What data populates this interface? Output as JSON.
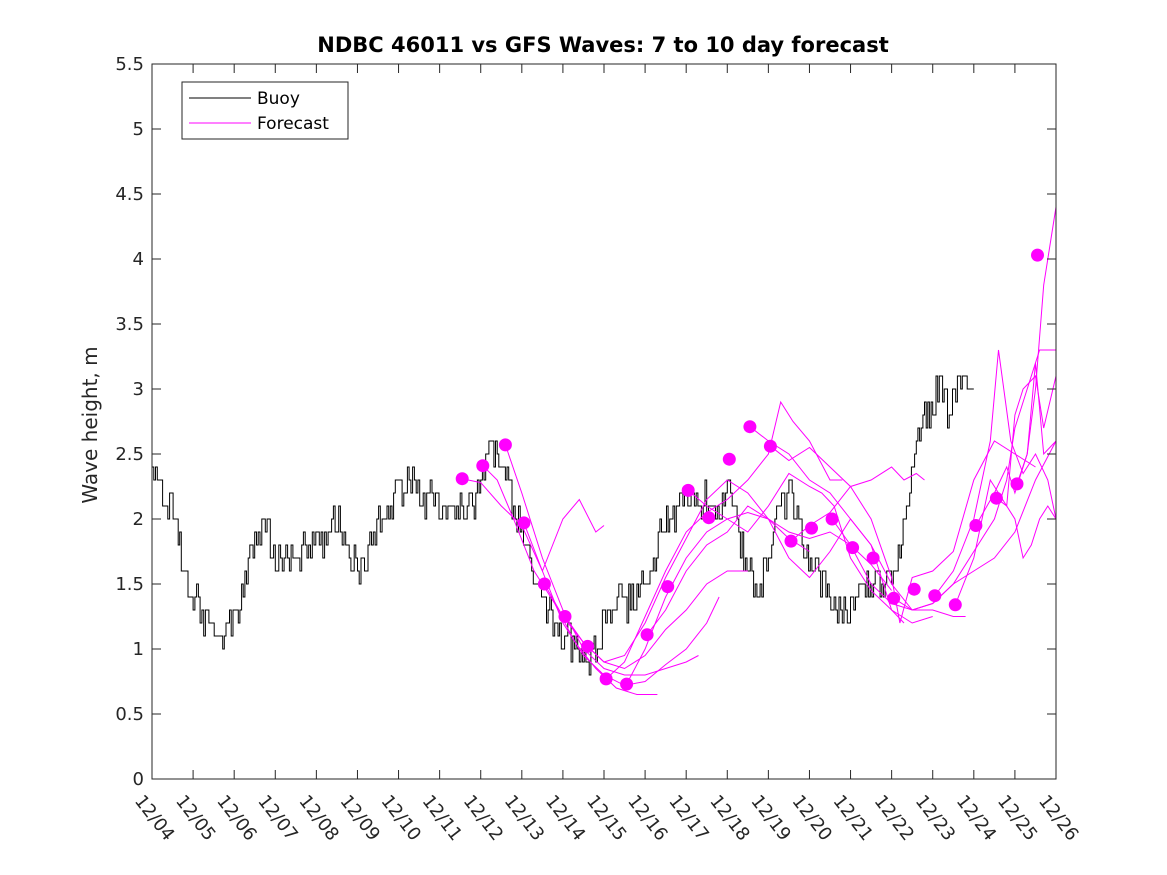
{
  "chart_data": {
    "type": "line",
    "title": "NDBC 46011 vs GFS Waves: 7 to 10 day forecast",
    "xlabel": "",
    "ylabel": "Wave height, m",
    "x_ticks": [
      "12/04",
      "12/05",
      "12/06",
      "12/07",
      "12/08",
      "12/09",
      "12/10",
      "12/11",
      "12/12",
      "12/13",
      "12/14",
      "12/15",
      "12/16",
      "12/17",
      "12/18",
      "12/19",
      "12/20",
      "12/21",
      "12/22",
      "12/23",
      "12/24",
      "12/25",
      "12/26"
    ],
    "xlim": [
      0,
      22
    ],
    "ylim": [
      0,
      5.5
    ],
    "y_ticks": [
      "0",
      "0.5",
      "1",
      "1.5",
      "2",
      "2.5",
      "3",
      "3.5",
      "4",
      "4.5",
      "5",
      "5.5"
    ],
    "legend": {
      "position": "top-left",
      "entries": [
        {
          "label": "Buoy",
          "color": "#000000"
        },
        {
          "label": "Forecast",
          "color": "#ff00ff"
        }
      ]
    },
    "colors": {
      "buoy": "#000000",
      "forecast": "#ff00ff"
    },
    "buoy_anchors": [
      [
        0,
        2.4
      ],
      [
        0.3,
        2.1
      ],
      [
        0.6,
        2.0
      ],
      [
        0.75,
        1.6
      ],
      [
        1.0,
        1.4
      ],
      [
        1.3,
        1.2
      ],
      [
        1.6,
        1.15
      ],
      [
        1.8,
        1.1
      ],
      [
        2.1,
        1.3
      ],
      [
        2.3,
        1.6
      ],
      [
        2.5,
        1.8
      ],
      [
        2.8,
        1.9
      ],
      [
        3.0,
        1.7
      ],
      [
        3.3,
        1.75
      ],
      [
        3.6,
        1.7
      ],
      [
        3.9,
        1.8
      ],
      [
        4.2,
        1.85
      ],
      [
        4.5,
        2.0
      ],
      [
        4.8,
        1.7
      ],
      [
        5.0,
        1.6
      ],
      [
        5.3,
        1.8
      ],
      [
        5.6,
        2.0
      ],
      [
        6.0,
        2.2
      ],
      [
        6.3,
        2.3
      ],
      [
        6.6,
        2.1
      ],
      [
        6.9,
        2.2
      ],
      [
        7.2,
        2.05
      ],
      [
        7.5,
        2.1
      ],
      [
        7.8,
        2.1
      ],
      [
        8.0,
        2.3
      ],
      [
        8.2,
        2.5
      ],
      [
        8.4,
        2.5
      ],
      [
        8.6,
        2.3
      ],
      [
        8.8,
        2.1
      ],
      [
        9.0,
        1.9
      ],
      [
        9.2,
        1.6
      ],
      [
        9.4,
        1.5
      ],
      [
        9.6,
        1.3
      ],
      [
        9.8,
        1.2
      ],
      [
        10.0,
        1.1
      ],
      [
        10.2,
        1.05
      ],
      [
        10.4,
        1.0
      ],
      [
        10.6,
        0.95
      ],
      [
        10.8,
        0.95
      ],
      [
        11.0,
        1.2
      ],
      [
        11.2,
        1.35
      ],
      [
        11.4,
        1.35
      ],
      [
        11.6,
        1.35
      ],
      [
        11.8,
        1.4
      ],
      [
        12.0,
        1.55
      ],
      [
        12.2,
        1.7
      ],
      [
        12.4,
        1.9
      ],
      [
        12.6,
        2.0
      ],
      [
        12.8,
        2.1
      ],
      [
        13.0,
        2.1
      ],
      [
        13.2,
        2.1
      ],
      [
        13.5,
        2.15
      ],
      [
        13.8,
        2.1
      ],
      [
        14.0,
        2.2
      ],
      [
        14.2,
        2.0
      ],
      [
        14.4,
        1.7
      ],
      [
        14.6,
        1.55
      ],
      [
        14.8,
        1.5
      ],
      [
        15.0,
        1.7
      ],
      [
        15.2,
        2.0
      ],
      [
        15.4,
        2.15
      ],
      [
        15.5,
        2.3
      ],
      [
        15.7,
        2.0
      ],
      [
        15.9,
        1.75
      ],
      [
        16.1,
        1.65
      ],
      [
        16.4,
        1.5
      ],
      [
        16.6,
        1.3
      ],
      [
        16.8,
        1.25
      ],
      [
        17.0,
        1.3
      ],
      [
        17.2,
        1.4
      ],
      [
        17.4,
        1.55
      ],
      [
        17.6,
        1.5
      ],
      [
        17.8,
        1.5
      ],
      [
        18.0,
        1.55
      ],
      [
        18.2,
        1.8
      ],
      [
        18.4,
        2.2
      ],
      [
        18.6,
        2.6
      ],
      [
        18.8,
        2.8
      ],
      [
        19.0,
        2.9
      ],
      [
        19.2,
        3.0
      ],
      [
        19.4,
        2.8
      ],
      [
        19.6,
        3.1
      ],
      [
        19.8,
        3.0
      ],
      [
        20.0,
        3.0
      ]
    ],
    "forecast_points": [
      [
        7.55,
        2.31
      ],
      [
        8.05,
        2.41
      ],
      [
        8.6,
        2.57
      ],
      [
        9.05,
        1.97
      ],
      [
        9.55,
        1.5
      ],
      [
        10.05,
        1.25
      ],
      [
        10.6,
        1.02
      ],
      [
        11.05,
        0.77
      ],
      [
        11.55,
        0.73
      ],
      [
        12.05,
        1.11
      ],
      [
        12.55,
        1.48
      ],
      [
        13.05,
        2.22
      ],
      [
        13.55,
        2.01
      ],
      [
        14.05,
        2.46
      ],
      [
        14.55,
        2.71
      ],
      [
        15.05,
        2.56
      ],
      [
        15.55,
        1.83
      ],
      [
        16.05,
        1.93
      ],
      [
        16.55,
        2.0
      ],
      [
        17.05,
        1.78
      ],
      [
        17.55,
        1.7
      ],
      [
        18.05,
        1.39
      ],
      [
        18.55,
        1.46
      ],
      [
        19.05,
        1.41
      ],
      [
        19.55,
        1.34
      ],
      [
        20.05,
        1.95
      ],
      [
        20.55,
        2.16
      ],
      [
        21.05,
        2.27
      ],
      [
        21.55,
        4.03
      ]
    ],
    "forecast_lines": [
      [
        [
          7.55,
          2.31
        ],
        [
          8.0,
          2.28
        ],
        [
          8.5,
          2.1
        ],
        [
          9.0,
          1.95
        ],
        [
          9.5,
          1.6
        ],
        [
          10.0,
          2.0
        ],
        [
          10.4,
          2.15
        ],
        [
          10.8,
          1.9
        ],
        [
          11.0,
          1.95
        ]
      ],
      [
        [
          8.05,
          2.41
        ],
        [
          8.4,
          2.3
        ],
        [
          8.8,
          2.0
        ],
        [
          9.3,
          1.6
        ],
        [
          9.8,
          1.35
        ],
        [
          10.3,
          1.05
        ],
        [
          10.8,
          0.85
        ],
        [
          11.3,
          0.7
        ],
        [
          11.8,
          0.65
        ],
        [
          12.3,
          0.65
        ]
      ],
      [
        [
          8.6,
          2.57
        ],
        [
          9.0,
          2.2
        ],
        [
          9.5,
          1.7
        ],
        [
          10.0,
          1.3
        ],
        [
          10.5,
          1.0
        ],
        [
          11.0,
          0.85
        ],
        [
          11.5,
          0.8
        ],
        [
          12.0,
          0.8
        ],
        [
          12.5,
          0.85
        ],
        [
          13.0,
          0.9
        ],
        [
          13.3,
          0.95
        ]
      ],
      [
        [
          9.05,
          1.97
        ],
        [
          9.5,
          1.6
        ],
        [
          10.0,
          1.2
        ],
        [
          10.5,
          0.95
        ],
        [
          11.0,
          0.8
        ],
        [
          11.5,
          0.72
        ],
        [
          12.0,
          0.75
        ],
        [
          12.5,
          0.88
        ],
        [
          13.0,
          1.0
        ],
        [
          13.5,
          1.2
        ],
        [
          13.8,
          1.4
        ]
      ],
      [
        [
          9.55,
          1.5
        ],
        [
          10.0,
          1.25
        ],
        [
          10.5,
          1.05
        ],
        [
          11.0,
          0.9
        ],
        [
          11.5,
          0.85
        ],
        [
          12.0,
          0.95
        ],
        [
          12.5,
          1.15
        ],
        [
          13.0,
          1.3
        ],
        [
          13.5,
          1.5
        ],
        [
          14.0,
          1.6
        ],
        [
          14.5,
          1.6
        ]
      ],
      [
        [
          10.05,
          1.25
        ],
        [
          10.5,
          1.05
        ],
        [
          11.0,
          0.9
        ],
        [
          11.5,
          0.95
        ],
        [
          12.0,
          1.2
        ],
        [
          12.5,
          1.55
        ],
        [
          13.0,
          1.85
        ],
        [
          13.5,
          2.15
        ],
        [
          14.0,
          2.3
        ],
        [
          14.5,
          2.2
        ],
        [
          15.0,
          2.0
        ],
        [
          15.5,
          1.85
        ],
        [
          16.0,
          1.75
        ]
      ],
      [
        [
          11.05,
          0.77
        ],
        [
          11.5,
          0.9
        ],
        [
          12.0,
          1.25
        ],
        [
          12.5,
          1.6
        ],
        [
          13.0,
          1.9
        ],
        [
          13.5,
          2.05
        ],
        [
          14.0,
          2.15
        ],
        [
          14.5,
          2.3
        ],
        [
          15.0,
          2.5
        ],
        [
          15.3,
          2.9
        ],
        [
          15.6,
          2.75
        ],
        [
          16.0,
          2.6
        ],
        [
          16.5,
          2.3
        ],
        [
          16.8,
          2.3
        ]
      ],
      [
        [
          11.55,
          0.73
        ],
        [
          12.0,
          1.0
        ],
        [
          12.5,
          1.4
        ],
        [
          13.0,
          1.7
        ],
        [
          13.5,
          1.9
        ],
        [
          14.0,
          2.0
        ],
        [
          14.5,
          2.05
        ],
        [
          15.0,
          2.0
        ],
        [
          15.5,
          1.9
        ],
        [
          16.0,
          1.85
        ],
        [
          16.5,
          1.9
        ],
        [
          17.0,
          1.8
        ],
        [
          17.5,
          1.65
        ],
        [
          18.0,
          1.45
        ]
      ],
      [
        [
          12.05,
          1.11
        ],
        [
          12.5,
          1.3
        ],
        [
          13.0,
          1.6
        ],
        [
          13.5,
          1.8
        ],
        [
          14.0,
          1.9
        ],
        [
          14.5,
          2.1
        ],
        [
          15.0,
          2.0
        ],
        [
          15.5,
          1.7
        ],
        [
          16.0,
          1.55
        ],
        [
          16.5,
          1.75
        ],
        [
          17.0,
          2.0
        ],
        [
          17.5,
          1.8
        ],
        [
          18.0,
          1.3
        ],
        [
          18.3,
          1.2
        ]
      ],
      [
        [
          13.05,
          2.22
        ],
        [
          13.5,
          2.1
        ],
        [
          14.0,
          2.0
        ],
        [
          14.5,
          1.9
        ],
        [
          15.0,
          2.1
        ],
        [
          15.5,
          2.35
        ],
        [
          16.0,
          2.25
        ],
        [
          16.3,
          2.2
        ],
        [
          16.6,
          2.1
        ],
        [
          17.0,
          1.7
        ],
        [
          17.5,
          1.45
        ],
        [
          18.0,
          1.3
        ],
        [
          18.5,
          1.2
        ],
        [
          19.0,
          1.25
        ]
      ],
      [
        [
          14.55,
          2.71
        ],
        [
          15.0,
          2.6
        ],
        [
          15.5,
          2.5
        ],
        [
          16.0,
          2.3
        ],
        [
          16.5,
          2.2
        ],
        [
          17.0,
          2.0
        ],
        [
          17.5,
          1.8
        ],
        [
          18.0,
          1.5
        ],
        [
          18.5,
          1.3
        ],
        [
          19.0,
          1.3
        ],
        [
          19.5,
          1.25
        ],
        [
          19.8,
          1.25
        ]
      ],
      [
        [
          15.05,
          2.56
        ],
        [
          15.5,
          2.45
        ],
        [
          16.0,
          2.55
        ],
        [
          16.5,
          2.4
        ],
        [
          17.0,
          2.25
        ],
        [
          17.5,
          2.3
        ],
        [
          18.0,
          2.4
        ],
        [
          18.3,
          2.3
        ],
        [
          18.6,
          2.35
        ],
        [
          18.8,
          2.3
        ]
      ],
      [
        [
          15.55,
          1.83
        ],
        [
          16.0,
          1.95
        ],
        [
          16.5,
          2.05
        ],
        [
          17.0,
          2.25
        ],
        [
          17.5,
          2.0
        ],
        [
          18.0,
          1.55
        ],
        [
          18.2,
          1.2
        ],
        [
          18.5,
          1.55
        ],
        [
          19.0,
          1.6
        ],
        [
          19.5,
          1.75
        ],
        [
          20.0,
          2.3
        ],
        [
          20.5,
          2.6
        ],
        [
          21.0,
          2.5
        ],
        [
          21.5,
          2.4
        ]
      ],
      [
        [
          16.55,
          2.0
        ],
        [
          17.0,
          1.8
        ],
        [
          17.5,
          1.5
        ],
        [
          18.0,
          1.35
        ],
        [
          18.5,
          1.3
        ],
        [
          19.0,
          1.35
        ],
        [
          19.5,
          1.5
        ],
        [
          20.0,
          1.6
        ],
        [
          20.5,
          1.7
        ],
        [
          21.0,
          1.9
        ],
        [
          21.5,
          2.3
        ],
        [
          22.0,
          2.6
        ]
      ],
      [
        [
          18.05,
          1.39
        ],
        [
          18.5,
          1.3
        ],
        [
          19.0,
          1.35
        ],
        [
          19.5,
          1.5
        ],
        [
          20.0,
          1.75
        ],
        [
          20.5,
          2.0
        ],
        [
          20.8,
          2.3
        ],
        [
          21.0,
          2.7
        ],
        [
          21.3,
          3.0
        ],
        [
          21.6,
          3.3
        ],
        [
          22.0,
          3.3
        ]
      ],
      [
        [
          19.05,
          1.41
        ],
        [
          19.5,
          1.6
        ],
        [
          20.0,
          2.0
        ],
        [
          20.4,
          2.6
        ],
        [
          20.6,
          3.3
        ],
        [
          20.9,
          2.6
        ],
        [
          21.2,
          2.35
        ],
        [
          21.5,
          2.5
        ],
        [
          21.8,
          2.3
        ],
        [
          22.0,
          2.0
        ]
      ],
      [
        [
          19.55,
          1.34
        ],
        [
          20.0,
          1.7
        ],
        [
          20.4,
          2.3
        ],
        [
          20.8,
          2.1
        ],
        [
          21.0,
          2.8
        ],
        [
          21.2,
          3.0
        ],
        [
          21.5,
          3.1
        ],
        [
          21.7,
          2.7
        ],
        [
          22.0,
          3.1
        ]
      ],
      [
        [
          20.05,
          1.95
        ],
        [
          20.5,
          2.2
        ],
        [
          20.8,
          2.4
        ],
        [
          21.0,
          2.2
        ],
        [
          21.3,
          2.5
        ],
        [
          21.5,
          3.2
        ],
        [
          21.7,
          2.5
        ],
        [
          22.0,
          2.6
        ]
      ],
      [
        [
          20.55,
          2.16
        ],
        [
          20.8,
          2.1
        ],
        [
          21.0,
          2.0
        ],
        [
          21.2,
          1.7
        ],
        [
          21.4,
          1.8
        ],
        [
          21.6,
          2.0
        ],
        [
          21.8,
          2.1
        ],
        [
          22.0,
          2.0
        ]
      ],
      [
        [
          21.05,
          2.27
        ],
        [
          21.3,
          2.5
        ],
        [
          21.5,
          3.0
        ],
        [
          21.7,
          3.8
        ],
        [
          21.9,
          4.2
        ],
        [
          22.0,
          4.4
        ]
      ]
    ]
  }
}
